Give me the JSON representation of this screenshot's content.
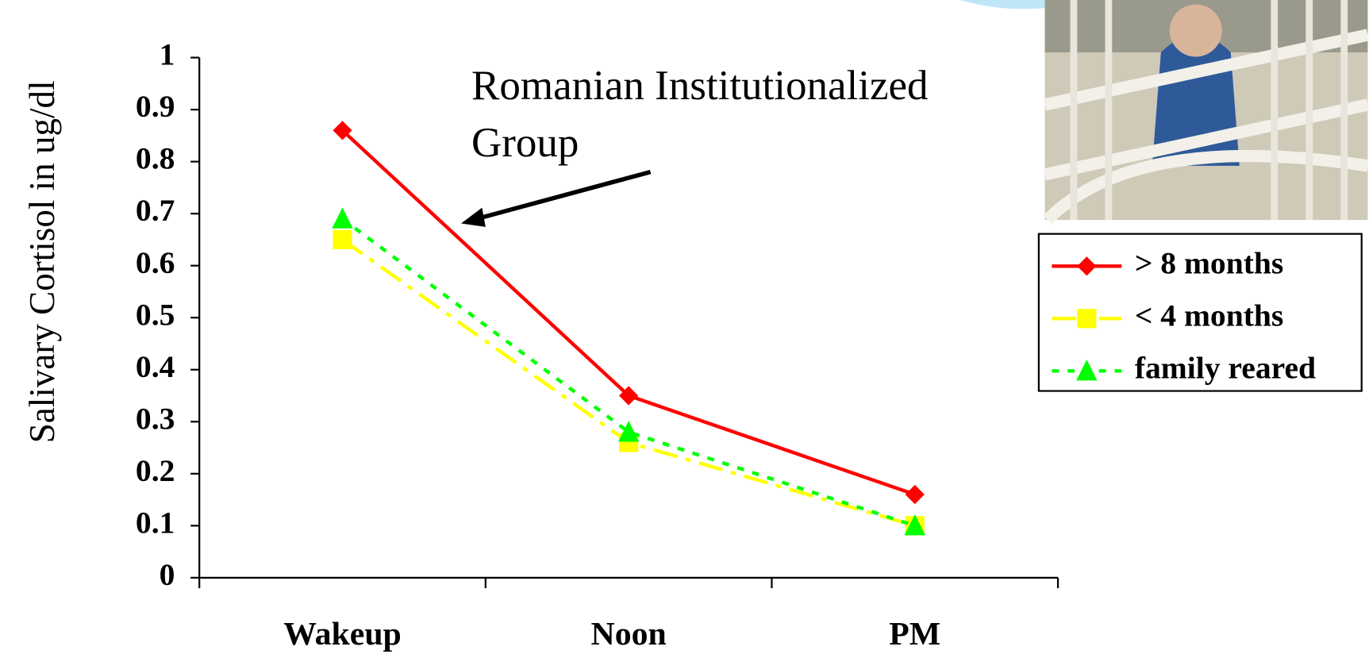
{
  "chart_data": {
    "type": "line",
    "annotation": "Romanian Institutionalized Group",
    "y_label": "Salivary Cortisol in ug/dl",
    "categories": [
      "Wakeup",
      "Noon",
      "PM"
    ],
    "series": [
      {
        "name": "> 8 months",
        "color": "#ff0000",
        "marker": "diamond",
        "dash": "solid",
        "values": [
          0.86,
          0.35,
          0.16
        ]
      },
      {
        "name": "< 4 months",
        "color": "#ffff00",
        "marker": "square",
        "dash": "dashdot",
        "values": [
          0.65,
          0.26,
          0.1
        ]
      },
      {
        "name": "family reared",
        "color": "#00ff00",
        "marker": "triangle",
        "dash": "dotted",
        "values": [
          0.69,
          0.28,
          0.1
        ]
      }
    ],
    "ylim": [
      0,
      1
    ],
    "yticks": [
      0,
      0.1,
      0.2,
      0.3,
      0.4,
      0.5,
      0.6,
      0.7,
      0.8,
      0.9,
      1
    ],
    "legend": "right"
  }
}
